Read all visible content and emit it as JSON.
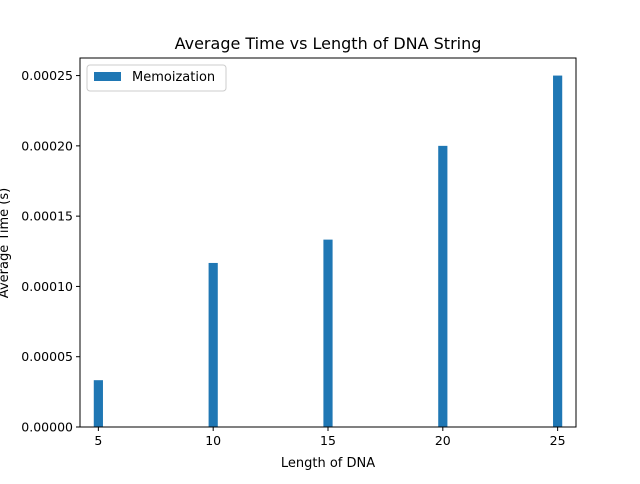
{
  "chart_data": {
    "type": "bar",
    "title": "Average Time vs Length of DNA String",
    "xlabel": "Length of DNA",
    "ylabel": "Average Time (s)",
    "x": [
      5,
      10,
      15,
      20,
      25
    ],
    "series": [
      {
        "name": "Memoization",
        "color": "#1f77b4",
        "values": [
          3.33e-05,
          0.0001167,
          0.0001333,
          0.0002,
          0.00025
        ]
      }
    ],
    "xlim": [
      4.2,
      25.8
    ],
    "ylim": [
      0,
      0.0002625
    ],
    "xticks": [
      5,
      10,
      15,
      20,
      25
    ],
    "xtick_labels": [
      "5",
      "10",
      "15",
      "20",
      "25"
    ],
    "yticks": [
      0,
      5e-05,
      0.0001,
      0.00015,
      0.0002,
      0.00025
    ],
    "ytick_labels": [
      "0.00000",
      "0.00005",
      "0.00010",
      "0.00015",
      "0.00020",
      "0.00025"
    ],
    "bar_width": 0.4,
    "grid": false,
    "legend_position": "top-left"
  }
}
